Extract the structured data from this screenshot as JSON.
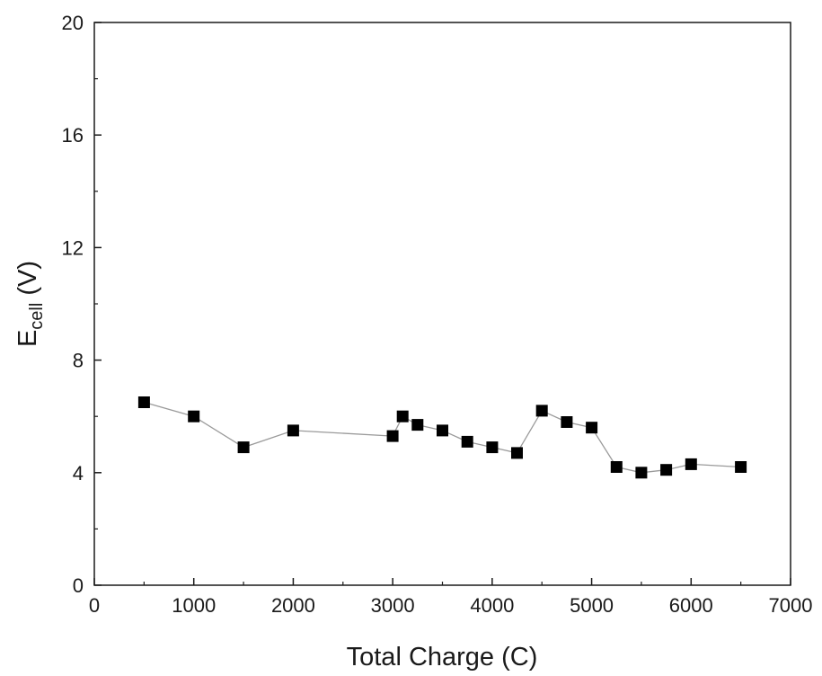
{
  "chart_data": {
    "type": "line",
    "xlabel": "Total Charge (C)",
    "ylabel_main": "E",
    "ylabel_sub": "cell",
    "ylabel_unit": " (V)",
    "xlim": [
      0,
      7000
    ],
    "ylim": [
      0,
      20
    ],
    "x_ticks": [
      "0",
      "1000",
      "2000",
      "3000",
      "4000",
      "5000",
      "6000",
      "7000"
    ],
    "y_ticks": [
      "0",
      "4",
      "8",
      "12",
      "16",
      "20"
    ],
    "grid": false,
    "marker": "square",
    "series": [
      {
        "x": [
          500,
          1000,
          1500,
          2000,
          3000,
          3100,
          3250,
          3500,
          3750,
          4000,
          4250,
          4500,
          4750,
          5000,
          5250,
          5500,
          5750,
          6000,
          6500
        ],
        "y": [
          6.5,
          6.0,
          4.9,
          5.5,
          5.3,
          6.0,
          5.7,
          5.5,
          5.1,
          4.9,
          4.7,
          6.2,
          5.8,
          5.6,
          4.2,
          4.0,
          4.1,
          4.3,
          4.2
        ]
      }
    ]
  }
}
